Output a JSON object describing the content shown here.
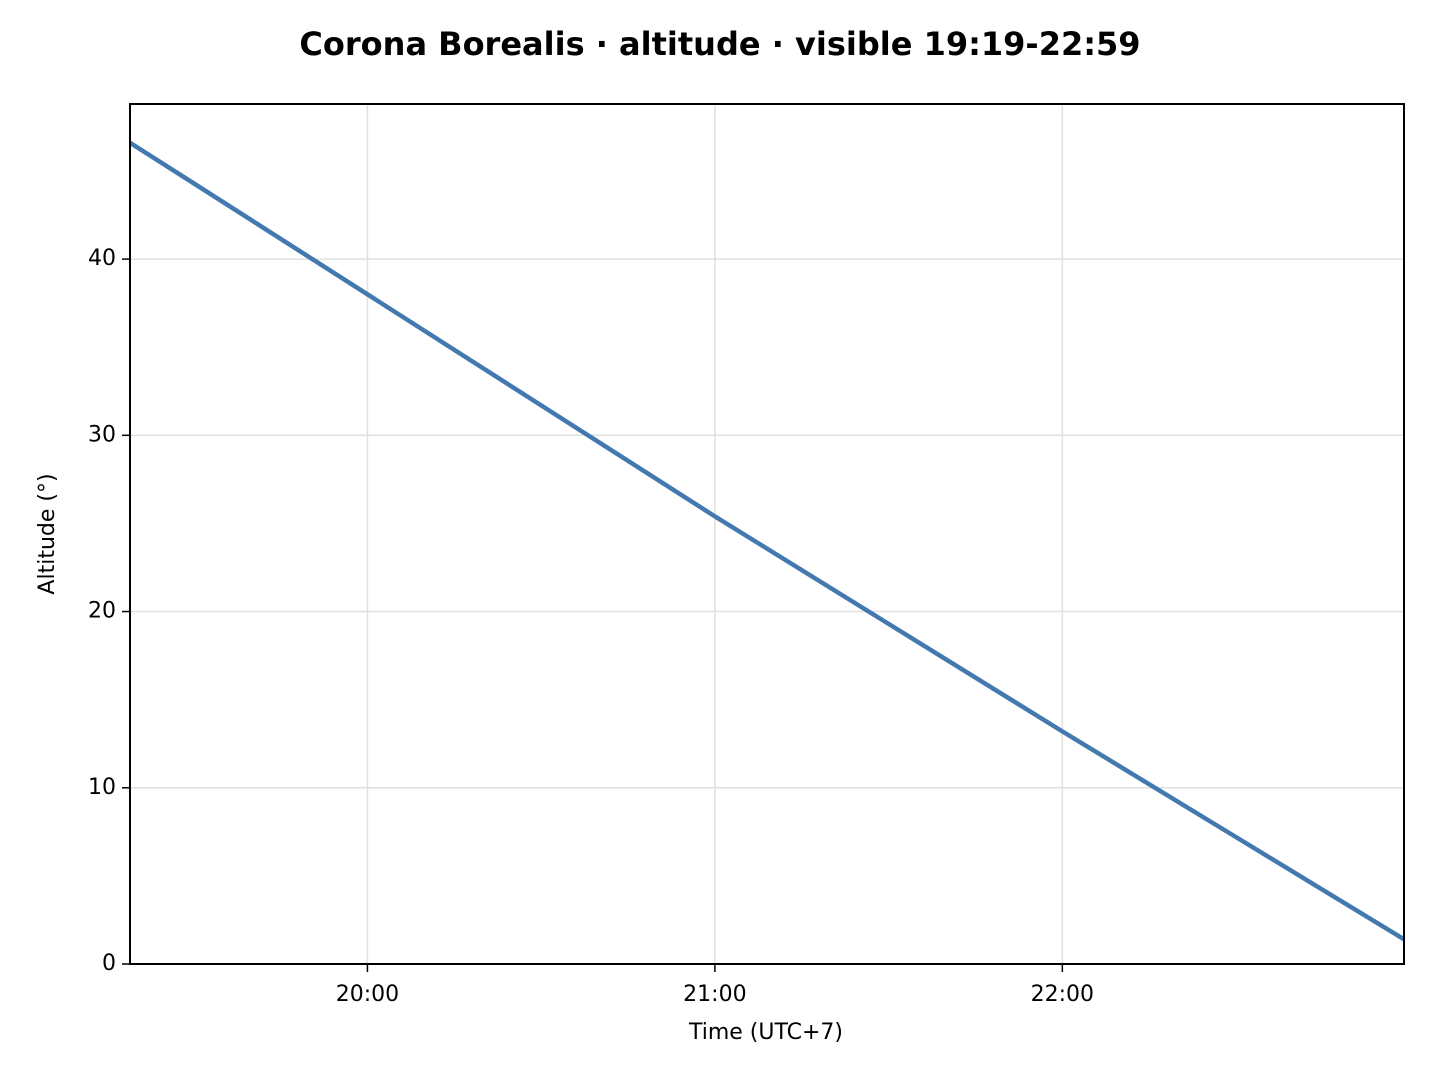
{
  "chart_data": {
    "type": "line",
    "title": "Corona Borealis · altitude · visible 19:19-22:59",
    "x_label": "Time (UTC+7)",
    "y_label": "Altitude (°)",
    "x": [
      "19:19",
      "19:30",
      "20:00",
      "20:30",
      "21:00",
      "21:30",
      "22:00",
      "22:30",
      "22:59"
    ],
    "series": [
      {
        "name": "Altitude",
        "color": "#4479b0",
        "values": [
          46.6,
          44.3,
          38.0,
          31.7,
          25.4,
          19.3,
          13.2,
          7.2,
          1.4
        ]
      }
    ],
    "xlim": [
      "19:19",
      "22:59"
    ],
    "xticks": [
      "20:00",
      "21:00",
      "22:00"
    ],
    "ylim": [
      0,
      48.8
    ],
    "yticks": [
      0,
      10,
      20,
      30,
      40
    ],
    "grid": true
  }
}
